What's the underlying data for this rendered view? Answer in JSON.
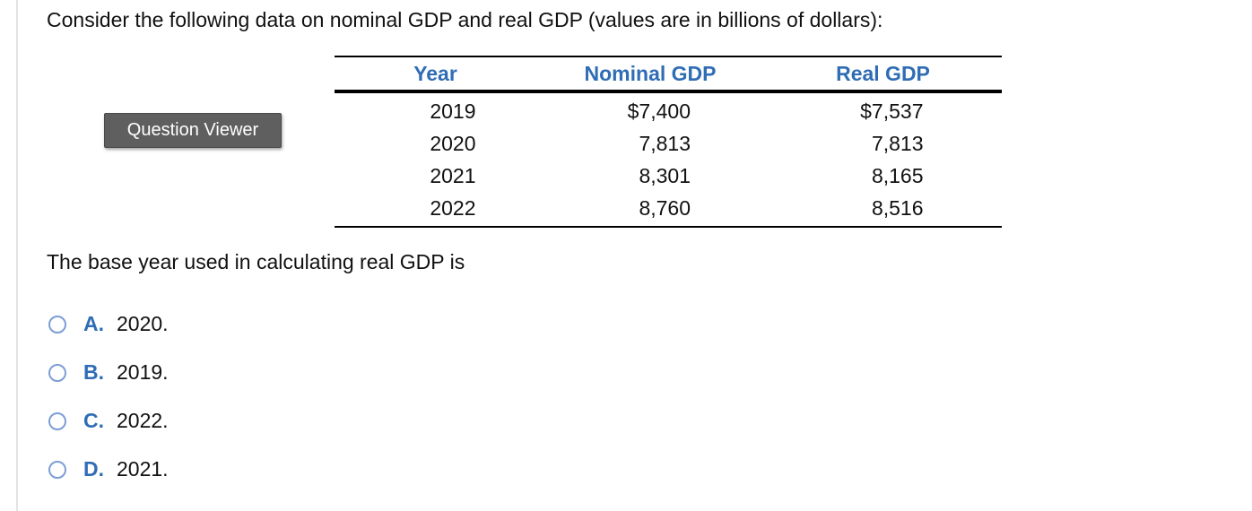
{
  "prompt": "Consider the following data on nominal GDP and real GDP (values are in billions of dollars):",
  "question_viewer_label": "Question Viewer",
  "table": {
    "headers": [
      "Year",
      "Nominal GDP",
      "Real GDP"
    ],
    "rows": [
      [
        "2019",
        "$7,400",
        "$7,537"
      ],
      [
        "2020",
        "7,813",
        "7,813"
      ],
      [
        "2021",
        "8,301",
        "8,165"
      ],
      [
        "2022",
        "8,760",
        "8,516"
      ]
    ]
  },
  "question": "The base year used in calculating real GDP is",
  "options": [
    {
      "letter": "A.",
      "text": "2020."
    },
    {
      "letter": "B.",
      "text": "2019."
    },
    {
      "letter": "C.",
      "text": "2022."
    },
    {
      "letter": "D.",
      "text": "2021."
    }
  ],
  "colors": {
    "accent_blue": "#2f6db5",
    "radio_border": "#7c9ed6",
    "button_bg": "#5f5f5f"
  }
}
